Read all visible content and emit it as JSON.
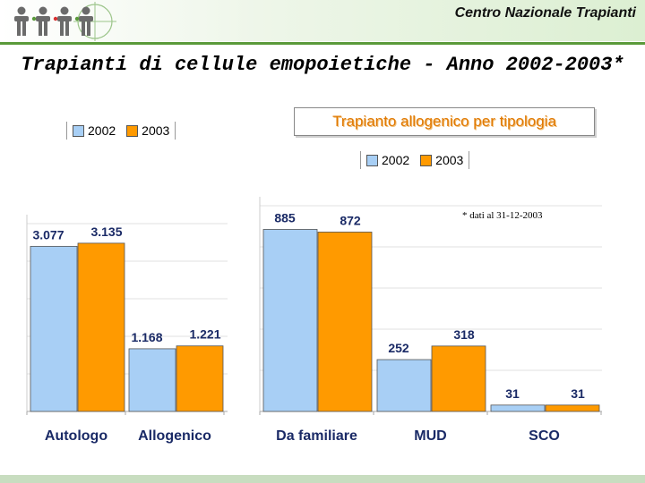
{
  "header": {
    "org_name": "Centro Nazionale Trapianti",
    "main_title": "Trapianti di cellule emopoietiche - Anno 2002-2003*",
    "footnote": "* dati al 31-12-2003"
  },
  "colors": {
    "series_2002": "#a8cff5",
    "series_2003": "#ff9a00",
    "brand_green": "#5a9a3a"
  },
  "chart_data": [
    {
      "type": "bar",
      "title": "",
      "categories": [
        "Autologo",
        "Allogenico"
      ],
      "series": [
        {
          "name": "2002",
          "values": [
            3077,
            1168
          ],
          "labels": [
            "3.077",
            "1.168"
          ]
        },
        {
          "name": "2003",
          "values": [
            3135,
            1221
          ],
          "labels": [
            "3.135",
            "1.221"
          ]
        }
      ],
      "ylim": [
        0,
        3500
      ],
      "legend": "top-left",
      "grid": true
    },
    {
      "type": "bar",
      "title": "Trapianto allogenico per tipologia",
      "categories": [
        "Da familiare",
        "MUD",
        "SCO"
      ],
      "series": [
        {
          "name": "2002",
          "values": [
            885,
            252,
            31
          ],
          "labels": [
            "885",
            "252",
            "31"
          ]
        },
        {
          "name": "2003",
          "values": [
            872,
            318,
            31
          ],
          "labels": [
            "872",
            "318",
            "31"
          ]
        }
      ],
      "ylim": [
        0,
        1000
      ],
      "legend": "top-center",
      "grid": true
    }
  ]
}
